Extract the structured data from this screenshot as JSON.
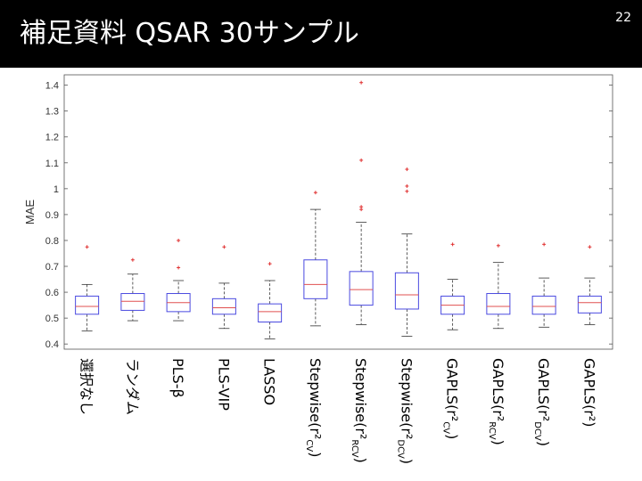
{
  "slide": {
    "title": "補足資料 QSAR 30サンプル",
    "page_number": "22"
  },
  "chart_data": {
    "type": "boxplot",
    "ylabel": "MAE",
    "xlabel": "",
    "ylim": [
      0.38,
      1.44
    ],
    "yticks": [
      0.4,
      0.5,
      0.6,
      0.7,
      0.8,
      0.9,
      1,
      1.1,
      1.2,
      1.3,
      1.4
    ],
    "ytick_labels": [
      "0.4",
      "0.5",
      "0.6",
      "0.7",
      "0.8",
      "0.9",
      "1",
      "1.1",
      "1.2",
      "1.3",
      "1.4"
    ],
    "grid": false,
    "colors": {
      "box": "#4a4ae0",
      "median": "#e05050",
      "whisker": "#333333",
      "outlier": "#e03030"
    },
    "categories": [
      {
        "label": "選択なし",
        "sub": "",
        "tail": "",
        "whisker_low": 0.45,
        "q1": 0.515,
        "median": 0.545,
        "q3": 0.585,
        "whisker_high": 0.63,
        "outliers": [
          0.775
        ]
      },
      {
        "label": "ランダム",
        "sub": "",
        "tail": "",
        "whisker_low": 0.49,
        "q1": 0.53,
        "median": 0.565,
        "q3": 0.595,
        "whisker_high": 0.67,
        "outliers": [
          0.725
        ]
      },
      {
        "label": "PLS-β",
        "sub": "",
        "tail": "",
        "whisker_low": 0.49,
        "q1": 0.525,
        "median": 0.56,
        "q3": 0.595,
        "whisker_high": 0.645,
        "outliers": [
          0.695,
          0.8
        ]
      },
      {
        "label": "PLS-VIP",
        "sub": "",
        "tail": "",
        "whisker_low": 0.46,
        "q1": 0.515,
        "median": 0.54,
        "q3": 0.575,
        "whisker_high": 0.635,
        "outliers": [
          0.775
        ]
      },
      {
        "label": "LASSO",
        "sub": "",
        "tail": "",
        "whisker_low": 0.42,
        "q1": 0.485,
        "median": 0.525,
        "q3": 0.555,
        "whisker_high": 0.645,
        "outliers": [
          0.71
        ]
      },
      {
        "label": "Stepwise(r²",
        "sub": "CV",
        "tail": ")",
        "whisker_low": 0.47,
        "q1": 0.575,
        "median": 0.63,
        "q3": 0.725,
        "whisker_high": 0.92,
        "outliers": [
          0.985
        ]
      },
      {
        "label": "Stepwise(r²",
        "sub": "RCV",
        "tail": ")",
        "whisker_low": 0.475,
        "q1": 0.55,
        "median": 0.61,
        "q3": 0.68,
        "whisker_high": 0.87,
        "outliers": [
          0.92,
          0.93,
          1.11,
          1.41
        ]
      },
      {
        "label": "Stepwise(r²",
        "sub": "DCV",
        "tail": ")",
        "whisker_low": 0.43,
        "q1": 0.535,
        "median": 0.59,
        "q3": 0.675,
        "whisker_high": 0.825,
        "outliers": [
          0.99,
          1.01,
          1.075
        ]
      },
      {
        "label": "GAPLS(r²",
        "sub": "CV",
        "tail": ")",
        "whisker_low": 0.455,
        "q1": 0.515,
        "median": 0.55,
        "q3": 0.585,
        "whisker_high": 0.65,
        "outliers": [
          0.785
        ]
      },
      {
        "label": "GAPLS(r²",
        "sub": "RCV",
        "tail": ")",
        "whisker_low": 0.46,
        "q1": 0.515,
        "median": 0.545,
        "q3": 0.595,
        "whisker_high": 0.715,
        "outliers": [
          0.78
        ]
      },
      {
        "label": "GAPLS(r²",
        "sub": "DCV",
        "tail": ")",
        "whisker_low": 0.465,
        "q1": 0.515,
        "median": 0.545,
        "q3": 0.585,
        "whisker_high": 0.655,
        "outliers": [
          0.785
        ]
      },
      {
        "label": "GAPLS(r²)",
        "sub": "",
        "tail": "",
        "whisker_low": 0.475,
        "q1": 0.52,
        "median": 0.56,
        "q3": 0.585,
        "whisker_high": 0.655,
        "outliers": [
          0.775
        ]
      }
    ]
  }
}
